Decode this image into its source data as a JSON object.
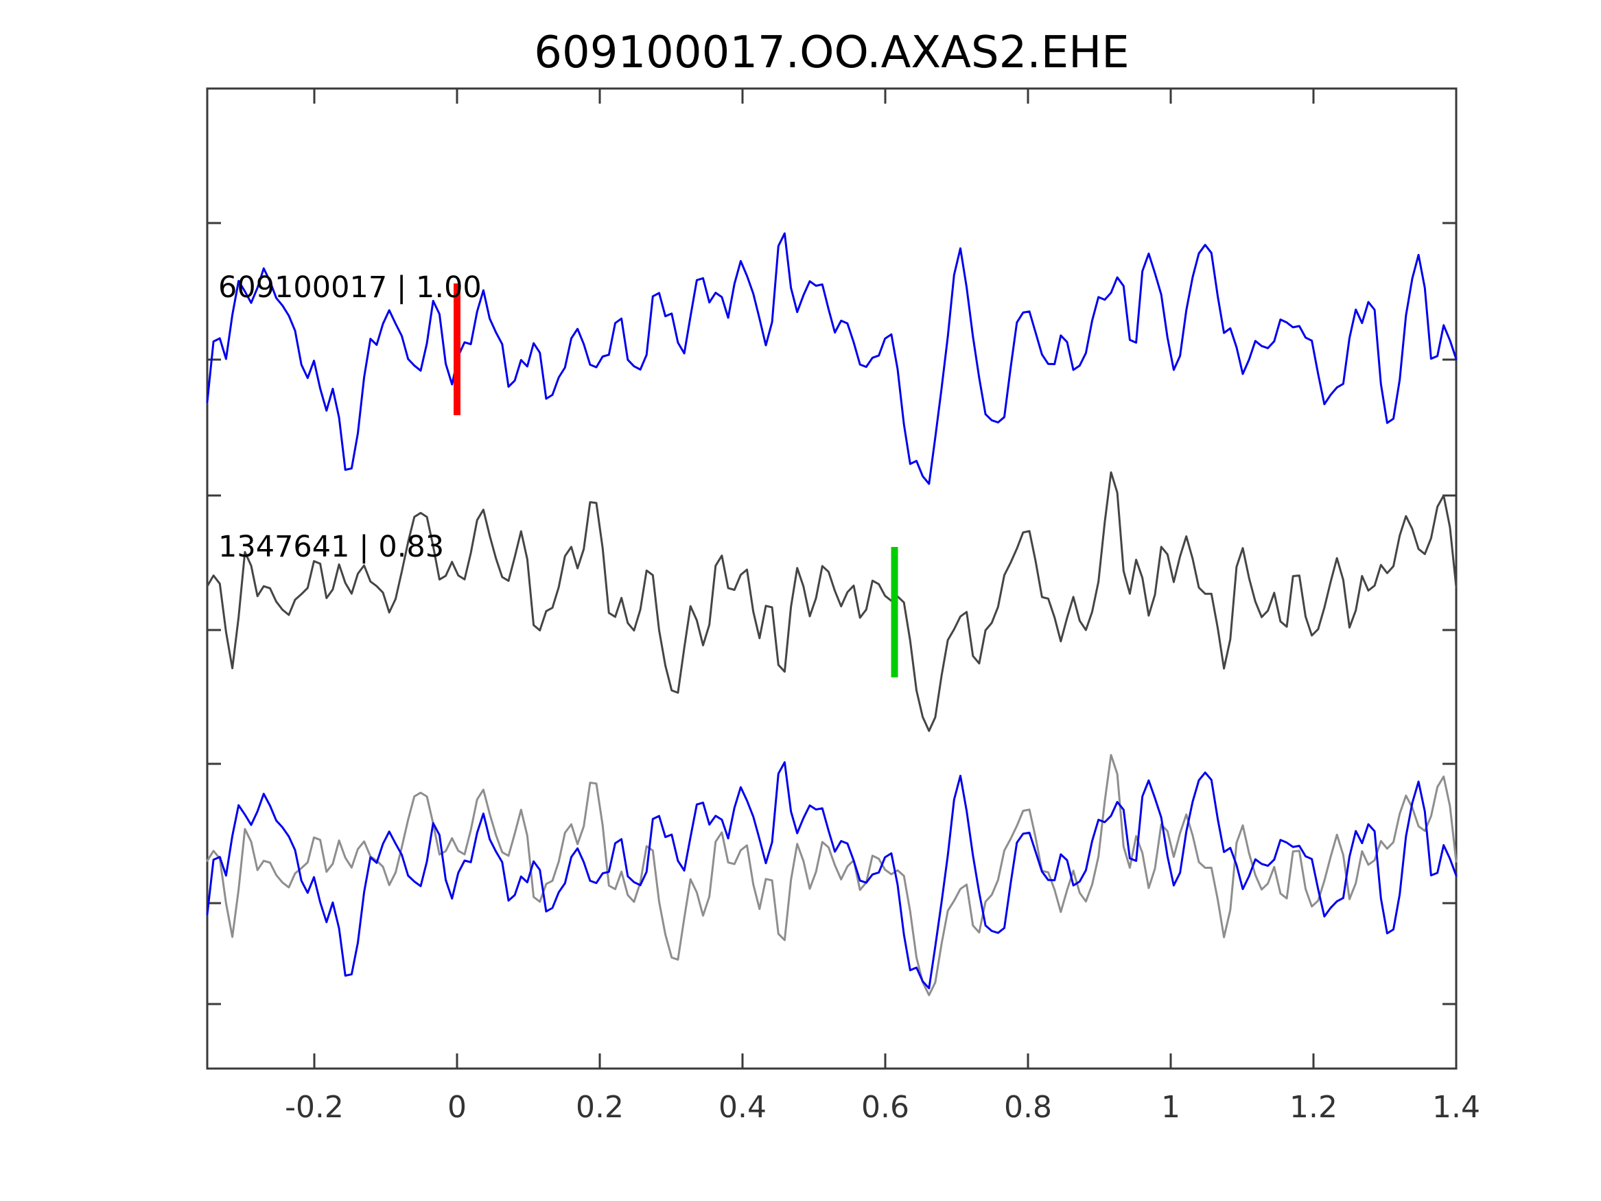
{
  "title": "609100017.OO.AXAS2.EHE",
  "chart_data": {
    "type": "line",
    "title": "609100017.OO.AXAS2.EHE",
    "xlabel": "",
    "ylabel": "",
    "xlim": [
      -0.35,
      1.4
    ],
    "x_ticks": [
      -0.2,
      0,
      0.2,
      0.4,
      0.6,
      0.8,
      1,
      1.2,
      1.4
    ],
    "x_tick_labels": [
      "-0.2",
      "0",
      "0.2",
      "0.4",
      "0.6",
      "0.8",
      "1",
      "1.2",
      "1.4"
    ],
    "grid": false,
    "legend": "none",
    "background": "#ffffff",
    "axis_color": "#3a3a3a",
    "tick_label_color": "#333333",
    "n_points": 200,
    "panels": [
      {
        "name": "template",
        "annotation": "609100017 | 1.00",
        "template_id": "609100017",
        "correlation": "1.00",
        "trace_color": "#0000ee",
        "pick_marker": {
          "color": "#ff0000",
          "x": 0.0
        }
      },
      {
        "name": "detection",
        "annotation": "1347641 | 0.83",
        "detection_id": "1347641",
        "correlation": "0.83",
        "trace_color": "#454545",
        "pick_marker": {
          "color": "#00cd00",
          "x": 0.613
        }
      },
      {
        "name": "overlay",
        "annotation": "",
        "trace_colors": [
          "#8e8e8e",
          "#0000ee"
        ]
      }
    ],
    "series": [
      {
        "name": "609100017",
        "seed": 60910,
        "smooth": 1,
        "noise_level": 0.62,
        "features": [
          {
            "x": -0.27,
            "amp": 0.45,
            "w": 0.015
          },
          {
            "x": -0.16,
            "amp": -0.5,
            "w": 0.018
          },
          {
            "x": 0.17,
            "amp": 0.55,
            "w": 0.014
          },
          {
            "x": 0.335,
            "amp": 0.8,
            "w": 0.013
          },
          {
            "x": 0.465,
            "amp": 0.75,
            "w": 0.016
          },
          {
            "x": 0.51,
            "amp": 0.5,
            "w": 0.012
          },
          {
            "x": 0.652,
            "amp": -0.95,
            "w": 0.024
          },
          {
            "x": 0.7,
            "amp": 1.0,
            "w": 0.014
          },
          {
            "x": 0.768,
            "amp": -0.55,
            "w": 0.018
          },
          {
            "x": 0.97,
            "amp": 0.5,
            "w": 0.013
          },
          {
            "x": 1.05,
            "amp": 0.55,
            "w": 0.013
          },
          {
            "x": 1.345,
            "amp": 0.5,
            "w": 0.012
          }
        ]
      },
      {
        "name": "1347641",
        "seed": 13476,
        "smooth": 1,
        "noise_level": 0.62,
        "features": [
          {
            "x": -0.315,
            "amp": -0.8,
            "w": 0.013
          },
          {
            "x": -0.298,
            "amp": 0.75,
            "w": 0.011
          },
          {
            "x": -0.06,
            "amp": 0.6,
            "w": 0.012
          },
          {
            "x": 0.04,
            "amp": 0.6,
            "w": 0.012
          },
          {
            "x": 0.125,
            "amp": -0.7,
            "w": 0.013
          },
          {
            "x": 0.195,
            "amp": 1.0,
            "w": 0.013
          },
          {
            "x": 0.212,
            "amp": -0.8,
            "w": 0.012
          },
          {
            "x": 0.3,
            "amp": -0.6,
            "w": 0.013
          },
          {
            "x": 0.46,
            "amp": -0.65,
            "w": 0.014
          },
          {
            "x": 0.655,
            "amp": -0.9,
            "w": 0.015
          },
          {
            "x": 0.74,
            "amp": -1.0,
            "w": 0.015
          },
          {
            "x": 0.925,
            "amp": 0.6,
            "w": 0.012
          },
          {
            "x": 1.06,
            "amp": -0.6,
            "w": 0.013
          },
          {
            "x": 1.385,
            "amp": 1.0,
            "w": 0.012
          },
          {
            "x": 1.398,
            "amp": -0.7,
            "w": 0.009
          }
        ]
      }
    ]
  }
}
